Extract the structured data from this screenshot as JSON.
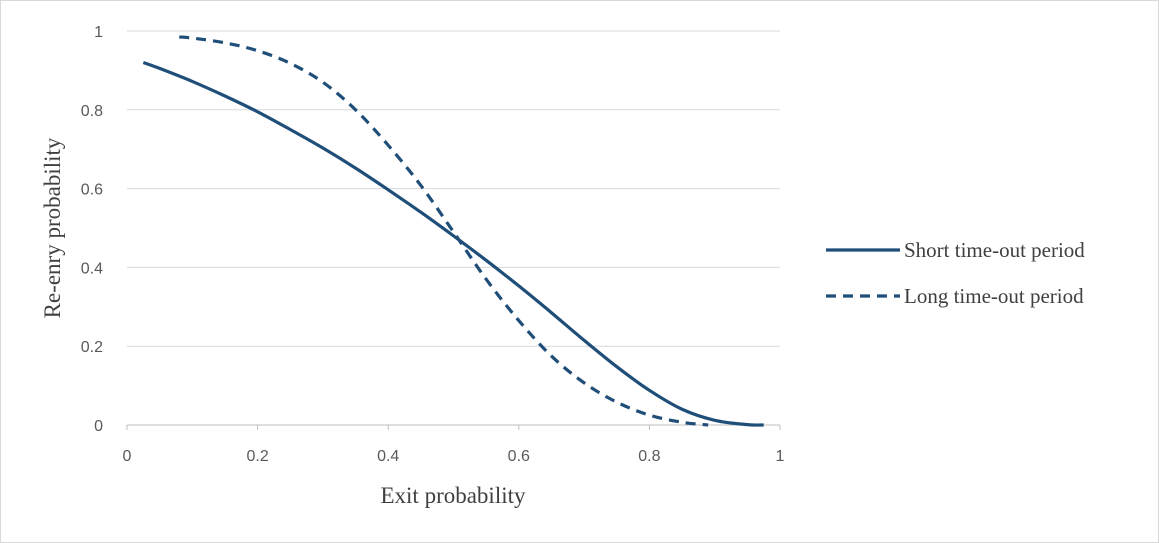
{
  "chart_data": {
    "type": "line",
    "title": "",
    "xlabel": "Exit probability",
    "ylabel": "Re-enry probability",
    "xlim": [
      0,
      1
    ],
    "ylim": [
      0,
      1
    ],
    "x_ticks": [
      "0",
      "0.2",
      "0.4",
      "0.6",
      "0.8",
      "1"
    ],
    "y_ticks": [
      "0",
      "0.2",
      "0.4",
      "0.6",
      "0.8",
      "1"
    ],
    "grid": "horizontal",
    "legend_position": "right",
    "series": [
      {
        "name": "Short time-out period",
        "style": "solid",
        "color": "#1f4e79",
        "x": [
          0.025,
          0.05,
          0.1,
          0.15,
          0.2,
          0.25,
          0.3,
          0.35,
          0.4,
          0.45,
          0.5,
          0.55,
          0.6,
          0.65,
          0.7,
          0.75,
          0.8,
          0.85,
          0.9,
          0.95,
          0.975
        ],
        "y": [
          0.92,
          0.905,
          0.872,
          0.835,
          0.795,
          0.75,
          0.703,
          0.652,
          0.597,
          0.54,
          0.48,
          0.418,
          0.353,
          0.285,
          0.215,
          0.148,
          0.088,
          0.04,
          0.012,
          0.001,
          0.0
        ]
      },
      {
        "name": "Long time-out period",
        "style": "dashed",
        "color": "#1f4e79",
        "x": [
          0.08,
          0.1,
          0.15,
          0.2,
          0.25,
          0.3,
          0.35,
          0.4,
          0.45,
          0.5,
          0.55,
          0.6,
          0.65,
          0.7,
          0.75,
          0.8,
          0.85,
          0.89
        ],
        "y": [
          0.985,
          0.982,
          0.97,
          0.95,
          0.918,
          0.87,
          0.8,
          0.71,
          0.608,
          0.49,
          0.37,
          0.265,
          0.175,
          0.107,
          0.058,
          0.025,
          0.007,
          0.0
        ]
      }
    ]
  }
}
